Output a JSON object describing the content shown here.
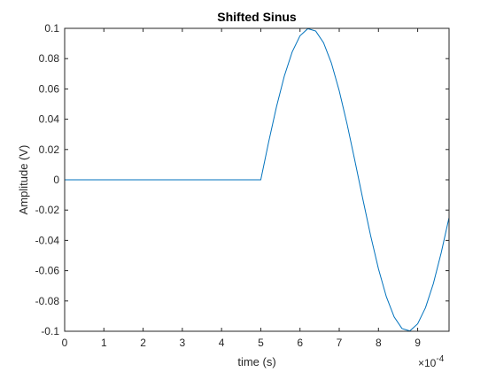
{
  "chart_data": {
    "type": "line",
    "title": "Shifted Sinus",
    "xlabel": "time (s)",
    "ylabel": "Amplitude (V)",
    "xlim": [
      0,
      0.00098
    ],
    "ylim": [
      -0.1,
      0.1
    ],
    "x_scale_exponent": "×10",
    "x_scale_power": "-4",
    "xticks": [
      0,
      1,
      2,
      3,
      4,
      5,
      6,
      7,
      8,
      9
    ],
    "yticks": [
      0.1,
      0.08,
      0.06,
      0.04,
      0.02,
      0,
      -0.02,
      -0.04,
      -0.06,
      -0.08,
      -0.1
    ],
    "x_tick_labels": [
      "0",
      "1",
      "2",
      "3",
      "4",
      "5",
      "6",
      "7",
      "8",
      "9"
    ],
    "y_tick_labels": [
      "0.1",
      "0.08",
      "0.06",
      "0.04",
      "0.02",
      "0",
      "-0.02",
      "-0.04",
      "-0.06",
      "-0.08",
      "-0.1"
    ],
    "grid": false,
    "colors": {
      "line": "#0072BD",
      "axes": "#262626"
    },
    "series": [
      {
        "x": [
          0,
          0.0005,
          0.00052,
          0.00054,
          0.00056,
          0.00058,
          0.0006,
          0.00062,
          0.00064,
          0.00066,
          0.00068,
          0.0007,
          0.00072,
          0.00074,
          0.00076,
          0.00078,
          0.0008,
          0.00082,
          0.00084,
          0.00086,
          0.00088,
          0.0009,
          0.00092,
          0.00094,
          0.00096,
          0.00098
        ],
        "y": [
          0,
          0,
          0.0249,
          0.0482,
          0.0685,
          0.0844,
          0.0951,
          0.0998,
          0.0982,
          0.0905,
          0.0771,
          0.0588,
          0.0368,
          0.0125,
          -0.0125,
          -0.0368,
          -0.0588,
          -0.0771,
          -0.0905,
          -0.0982,
          -0.0998,
          -0.0951,
          -0.0844,
          -0.0685,
          -0.0482,
          -0.0249
        ]
      }
    ]
  }
}
